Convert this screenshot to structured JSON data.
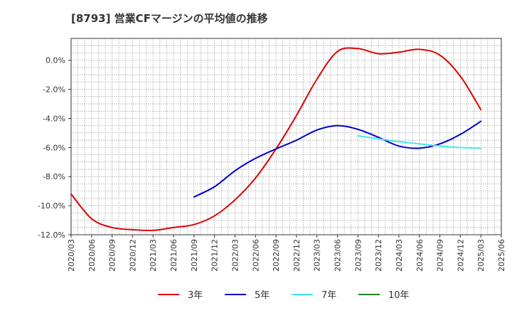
{
  "chart_data": {
    "type": "line",
    "title": "[8793]  営業CFマージンの平均値の推移",
    "xlabel": "",
    "ylabel": "",
    "ylim": [
      -12,
      1.5
    ],
    "xlim": [
      "2020/03",
      "2025/06"
    ],
    "y_ticks": [
      0,
      -2,
      -4,
      -6,
      -8,
      -10,
      -12
    ],
    "y_tick_labels": [
      "0.0%",
      "-2.0%",
      "-4.0%",
      "-6.0%",
      "-8.0%",
      "-10.0%",
      "-12.0%"
    ],
    "x_tick_labels": [
      "2020/03",
      "2020/06",
      "2020/09",
      "2020/12",
      "2021/03",
      "2021/06",
      "2021/09",
      "2021/12",
      "2022/03",
      "2022/06",
      "2022/09",
      "2022/12",
      "2023/03",
      "2023/06",
      "2023/09",
      "2023/12",
      "2024/03",
      "2024/06",
      "2024/09",
      "2024/12",
      "2025/03",
      "2025/06"
    ],
    "grid": true,
    "legend_position": "bottom",
    "series": [
      {
        "name": "3年",
        "color": "#dd0000",
        "points": [
          [
            "2020/03",
            -9.2
          ],
          [
            "2020/06",
            -10.9
          ],
          [
            "2020/09",
            -11.5
          ],
          [
            "2020/12",
            -11.65
          ],
          [
            "2021/03",
            -11.7
          ],
          [
            "2021/06",
            -11.5
          ],
          [
            "2021/09",
            -11.3
          ],
          [
            "2021/12",
            -10.7
          ],
          [
            "2022/03",
            -9.6
          ],
          [
            "2022/06",
            -8.1
          ],
          [
            "2022/09",
            -6.1
          ],
          [
            "2022/12",
            -3.8
          ],
          [
            "2023/03",
            -1.3
          ],
          [
            "2023/06",
            0.6
          ],
          [
            "2023/09",
            0.8
          ],
          [
            "2023/12",
            0.45
          ],
          [
            "2024/03",
            0.55
          ],
          [
            "2024/06",
            0.75
          ],
          [
            "2024/09",
            0.35
          ],
          [
            "2024/12",
            -1.1
          ],
          [
            "2025/03",
            -3.4
          ]
        ]
      },
      {
        "name": "5年",
        "color": "#0000cc",
        "points": [
          [
            "2021/09",
            -9.4
          ],
          [
            "2021/12",
            -8.7
          ],
          [
            "2022/03",
            -7.6
          ],
          [
            "2022/06",
            -6.75
          ],
          [
            "2022/09",
            -6.1
          ],
          [
            "2022/12",
            -5.5
          ],
          [
            "2023/03",
            -4.8
          ],
          [
            "2023/06",
            -4.5
          ],
          [
            "2023/09",
            -4.75
          ],
          [
            "2023/12",
            -5.3
          ],
          [
            "2024/03",
            -5.9
          ],
          [
            "2024/06",
            -6.05
          ],
          [
            "2024/09",
            -5.75
          ],
          [
            "2024/12",
            -5.1
          ],
          [
            "2025/03",
            -4.2
          ]
        ]
      },
      {
        "name": "7年",
        "color": "#44e8ee",
        "points": [
          [
            "2023/09",
            -5.2
          ],
          [
            "2023/12",
            -5.4
          ],
          [
            "2024/03",
            -5.6
          ],
          [
            "2024/06",
            -5.75
          ],
          [
            "2024/09",
            -5.9
          ],
          [
            "2024/12",
            -6.0
          ],
          [
            "2025/03",
            -6.05
          ]
        ]
      },
      {
        "name": "10年",
        "color": "#228822",
        "points": []
      }
    ]
  }
}
